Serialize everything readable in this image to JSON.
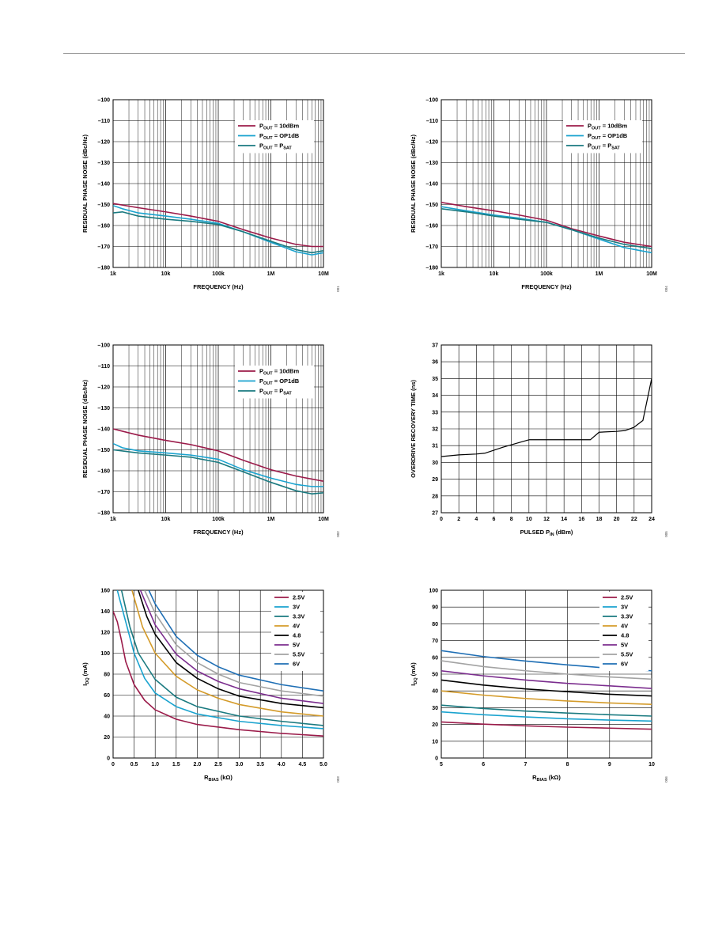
{
  "page": {
    "rule_color": "#9a9a9a"
  },
  "chart_data": [
    {
      "id": "c1",
      "type": "line",
      "xscale": "log",
      "xlim": [
        1000,
        10000000
      ],
      "ylim": [
        -180,
        -100
      ],
      "xticks": [
        1000,
        10000,
        100000,
        1000000,
        10000000
      ],
      "xticklabels": [
        "1k",
        "10k",
        "100k",
        "1M",
        "10M"
      ],
      "yticks": [
        -100,
        -110,
        -120,
        -130,
        -140,
        -150,
        -160,
        -170,
        -180
      ],
      "yticklabels": [
        "–100",
        "–110",
        "–120",
        "–130",
        "–140",
        "–150",
        "–160",
        "–170",
        "–180"
      ],
      "grid": true,
      "ylabel": "RESIDUAL PHASE NOISE (dBc/Hz)",
      "xlabel": "FREQUENCY (Hz)",
      "legend_loc": "top-right",
      "fig": "001",
      "series": [
        {
          "name": "P_OUT = 10dBm",
          "color": "#9b1b4a",
          "x": [
            1000,
            3000,
            10000,
            30000,
            100000,
            300000,
            1000000,
            3000000,
            6000000,
            10000000
          ],
          "y": [
            -149.5,
            -151.5,
            -153.5,
            -155.5,
            -158,
            -162,
            -166,
            -169,
            -170,
            -170
          ]
        },
        {
          "name": "P_OUT = OP1dB",
          "color": "#1aa3cf",
          "x": [
            1000,
            1500,
            3000,
            10000,
            30000,
            100000,
            300000,
            1000000,
            3000000,
            6000000,
            10000000
          ],
          "y": [
            -150.5,
            -152,
            -154,
            -155.5,
            -157,
            -159,
            -163,
            -168,
            -172.5,
            -174,
            -173
          ]
        },
        {
          "name": "P_OUT = P_SAT",
          "color": "#1a7a80",
          "x": [
            1000,
            1500,
            3000,
            10000,
            30000,
            100000,
            300000,
            1000000,
            3000000,
            6000000,
            10000000
          ],
          "y": [
            -154,
            -153.5,
            -155.5,
            -157,
            -158,
            -159.5,
            -163,
            -167.5,
            -171.5,
            -173,
            -172
          ]
        }
      ]
    },
    {
      "id": "c2",
      "type": "line",
      "xscale": "log",
      "xlim": [
        1000,
        10000000
      ],
      "ylim": [
        -180,
        -100
      ],
      "xticks": [
        1000,
        10000,
        100000,
        1000000,
        10000000
      ],
      "xticklabels": [
        "1k",
        "10k",
        "100k",
        "1M",
        "10M"
      ],
      "yticks": [
        -100,
        -110,
        -120,
        -130,
        -140,
        -150,
        -160,
        -170,
        -180
      ],
      "yticklabels": [
        "–100",
        "–110",
        "–120",
        "–130",
        "–140",
        "–150",
        "–160",
        "–170",
        "–180"
      ],
      "grid": true,
      "ylabel": "RESIDUAL PHASE NOISE (dBc/Hz)",
      "xlabel": "FREQUENCY (Hz)",
      "legend_loc": "top-right",
      "fig": "004",
      "series": [
        {
          "name": "P_OUT = 10dBm",
          "color": "#9b1b4a",
          "x": [
            1000,
            3000,
            10000,
            30000,
            100000,
            300000,
            1000000,
            3000000,
            10000000
          ],
          "y": [
            -149,
            -151,
            -153,
            -155,
            -157.5,
            -161.5,
            -165,
            -168,
            -170
          ]
        },
        {
          "name": "P_OUT = OP1dB",
          "color": "#1aa3cf",
          "x": [
            1000,
            3000,
            10000,
            30000,
            100000,
            300000,
            1000000,
            3000000,
            10000000
          ],
          "y": [
            -151,
            -153,
            -155,
            -156.5,
            -158.5,
            -162,
            -166.5,
            -170.5,
            -173
          ]
        },
        {
          "name": "P_OUT = P_SAT",
          "color": "#1a7a80",
          "x": [
            1000,
            3000,
            10000,
            30000,
            100000,
            300000,
            1000000,
            3000000,
            10000000
          ],
          "y": [
            -152,
            -153.5,
            -155.5,
            -157,
            -158.5,
            -162,
            -166,
            -169,
            -171
          ]
        }
      ]
    },
    {
      "id": "c3",
      "type": "line",
      "xscale": "log",
      "xlim": [
        1000,
        10000000
      ],
      "ylim": [
        -180,
        -100
      ],
      "xticks": [
        1000,
        10000,
        100000,
        1000000,
        10000000
      ],
      "xticklabels": [
        "1k",
        "10k",
        "100k",
        "1M",
        "10M"
      ],
      "yticks": [
        -100,
        -110,
        -120,
        -130,
        -140,
        -150,
        -160,
        -170,
        -180
      ],
      "yticklabels": [
        "–100",
        "–110",
        "–120",
        "–130",
        "–140",
        "–150",
        "–160",
        "–170",
        "–180"
      ],
      "grid": true,
      "ylabel": "RESIDUAL PHASE NOISE (dBc/Hz)",
      "xlabel": "FREQUENCY (Hz)",
      "legend_loc": "top-right",
      "fig": "002",
      "series": [
        {
          "name": "P_OUT = 10dBm",
          "color": "#9b1b4a",
          "x": [
            1000,
            3000,
            10000,
            30000,
            100000,
            300000,
            1000000,
            3000000,
            10000000
          ],
          "y": [
            -140,
            -143,
            -145.5,
            -147.5,
            -150.5,
            -155,
            -159.5,
            -162.5,
            -165
          ]
        },
        {
          "name": "P_OUT = OP1dB",
          "color": "#1aa3cf",
          "x": [
            1000,
            1500,
            3000,
            10000,
            30000,
            100000,
            300000,
            1000000,
            3000000,
            6000000,
            10000000
          ],
          "y": [
            -147,
            -149,
            -150.5,
            -151.5,
            -152.5,
            -154.5,
            -159.5,
            -163.5,
            -166.5,
            -167.5,
            -167.5
          ]
        },
        {
          "name": "P_OUT = P_SAT",
          "color": "#1a7a80",
          "x": [
            1000,
            3000,
            10000,
            30000,
            100000,
            300000,
            1000000,
            3000000,
            6000000,
            10000000
          ],
          "y": [
            -150,
            -151.5,
            -152.5,
            -153.5,
            -156,
            -160.5,
            -165.5,
            -169.5,
            -171,
            -170.5
          ]
        }
      ]
    },
    {
      "id": "c4",
      "type": "line",
      "xscale": "linear",
      "xlim": [
        0,
        24
      ],
      "ylim": [
        27,
        37
      ],
      "xticks": [
        0,
        2,
        4,
        6,
        8,
        10,
        12,
        14,
        16,
        18,
        20,
        22,
        24
      ],
      "xticklabels": [
        "0",
        "2",
        "4",
        "6",
        "8",
        "10",
        "12",
        "14",
        "16",
        "18",
        "20",
        "22",
        "24"
      ],
      "yticks": [
        27,
        28,
        29,
        30,
        31,
        32,
        33,
        34,
        35,
        36,
        37
      ],
      "yticklabels": [
        "27",
        "28",
        "29",
        "30",
        "31",
        "32",
        "33",
        "34",
        "35",
        "36",
        "37"
      ],
      "grid": true,
      "ylabel": "OVERDRIVE RECOVERY TIME (ns)",
      "xlabel": "PULSED P_IN (dBm)",
      "fig": "005",
      "series": [
        {
          "color": "#000000",
          "x": [
            0,
            2,
            4,
            5,
            7,
            9,
            10,
            11,
            13,
            15,
            17,
            18,
            20,
            21,
            22,
            23,
            24
          ],
          "y": [
            30.35,
            30.45,
            30.5,
            30.55,
            30.9,
            31.2,
            31.35,
            31.35,
            31.35,
            31.35,
            31.35,
            31.8,
            31.85,
            31.9,
            32.1,
            32.5,
            35
          ]
        }
      ]
    },
    {
      "id": "c5",
      "type": "line",
      "xscale": "linear",
      "xlim": [
        0,
        5
      ],
      "ylim": [
        0,
        160
      ],
      "xticks": [
        0,
        0.5,
        1.0,
        1.5,
        2.0,
        2.5,
        3.0,
        3.5,
        4.0,
        4.5,
        5.0
      ],
      "xticklabels": [
        "0",
        "0.5",
        "1.0",
        "1.5",
        "2.0",
        "2.5",
        "3.0",
        "3.5",
        "4.0",
        "4.5",
        "5.0"
      ],
      "yticks": [
        0,
        20,
        40,
        60,
        80,
        100,
        120,
        140,
        160
      ],
      "yticklabels": [
        "0",
        "20",
        "40",
        "60",
        "80",
        "100",
        "120",
        "140",
        "160"
      ],
      "grid": true,
      "ylabel": "I_DQ (mA)",
      "xlabel": "R_BIAS (kΩ)",
      "legend_loc": "top-right",
      "fig": "003",
      "series": [
        {
          "name": "2.5V",
          "color": "#9b1b4a",
          "x": [
            0,
            0.1,
            0.2,
            0.3,
            0.5,
            0.75,
            1.0,
            1.5,
            2.0,
            3.0,
            4.0,
            5.0
          ],
          "y": [
            140,
            130,
            112,
            92,
            70,
            55,
            46,
            37,
            32,
            27,
            23.5,
            21
          ]
        },
        {
          "name": "3V",
          "color": "#1aa3cf",
          "x": [
            0.1,
            0.3,
            0.5,
            0.75,
            1.0,
            1.5,
            2.0,
            3.0,
            4.0,
            5.0
          ],
          "y": [
            160,
            130,
            100,
            76,
            62,
            49,
            42,
            35,
            31,
            28
          ]
        },
        {
          "name": "3.3V",
          "color": "#1a7a80",
          "x": [
            0.2,
            0.4,
            0.6,
            1.0,
            1.5,
            2.0,
            3.0,
            4.0,
            5.0
          ],
          "y": [
            160,
            125,
            100,
            75,
            58,
            49,
            40,
            35,
            31
          ]
        },
        {
          "name": "4V",
          "color": "#d49b2a",
          "x": [
            0.45,
            0.7,
            1.0,
            1.5,
            2.0,
            2.5,
            3.0,
            4.0,
            5.0
          ],
          "y": [
            160,
            125,
            100,
            78,
            65,
            57,
            51,
            44,
            40
          ]
        },
        {
          "name": "4.8",
          "color": "#000000",
          "x": [
            0.6,
            0.8,
            1.0,
            1.5,
            2.0,
            2.5,
            3.0,
            4.0,
            5.0
          ],
          "y": [
            160,
            135,
            118,
            91,
            76,
            66,
            59,
            52,
            48
          ]
        },
        {
          "name": "5V",
          "color": "#7b2d8e",
          "x": [
            0.65,
            1.0,
            1.5,
            2.0,
            2.5,
            3.0,
            4.0,
            5.0
          ],
          "y": [
            160,
            127,
            99,
            83,
            73,
            66,
            57,
            52
          ]
        },
        {
          "name": "5.5V",
          "color": "#a3a3a3",
          "x": [
            0.75,
            1.0,
            1.5,
            2.0,
            2.5,
            3.0,
            4.0,
            5.0
          ],
          "y": [
            160,
            138,
            108,
            91,
            80,
            72,
            64,
            59
          ]
        },
        {
          "name": "6V",
          "color": "#1f6fb5",
          "x": [
            0.85,
            1.0,
            1.5,
            2.0,
            2.5,
            3.0,
            4.0,
            5.0
          ],
          "y": [
            160,
            147,
            116,
            98,
            87,
            79,
            70,
            64
          ]
        }
      ]
    },
    {
      "id": "c6",
      "type": "line",
      "xscale": "linear",
      "xlim": [
        5,
        10
      ],
      "ylim": [
        0,
        100
      ],
      "xticks": [
        5,
        6,
        7,
        8,
        9,
        10
      ],
      "xticklabels": [
        "5",
        "6",
        "7",
        "8",
        "9",
        "10"
      ],
      "yticks": [
        0,
        10,
        20,
        30,
        40,
        50,
        60,
        70,
        80,
        90,
        100
      ],
      "yticklabels": [
        "0",
        "10",
        "20",
        "30",
        "40",
        "50",
        "60",
        "70",
        "80",
        "90",
        "100"
      ],
      "grid": true,
      "ylabel": "I_DQ (mA)",
      "xlabel": "R_BIAS (kΩ)",
      "legend_loc": "top-right",
      "fig": "006",
      "series": [
        {
          "name": "2.5V",
          "color": "#9b1b4a",
          "x": [
            5,
            6,
            7,
            8,
            9,
            10
          ],
          "y": [
            21.5,
            20.2,
            19.2,
            18.4,
            17.8,
            17.2
          ]
        },
        {
          "name": "3V",
          "color": "#1aa3cf",
          "x": [
            5,
            6,
            7,
            8,
            9,
            10
          ],
          "y": [
            27.5,
            25.8,
            24.5,
            23.4,
            22.6,
            22
          ]
        },
        {
          "name": "3.3V",
          "color": "#1a7a80",
          "x": [
            5,
            6,
            7,
            8,
            9,
            10
          ],
          "y": [
            31.5,
            29.5,
            28,
            26.8,
            25.8,
            25
          ]
        },
        {
          "name": "4V",
          "color": "#d49b2a",
          "x": [
            5,
            6,
            7,
            8,
            9,
            10
          ],
          "y": [
            40,
            37.5,
            35.5,
            34,
            32.8,
            32
          ]
        },
        {
          "name": "4.8",
          "color": "#000000",
          "x": [
            5,
            6,
            7,
            8,
            9,
            10
          ],
          "y": [
            46.5,
            43.5,
            41.2,
            39.5,
            38,
            37
          ]
        },
        {
          "name": "5V",
          "color": "#7b2d8e",
          "x": [
            5,
            6,
            7,
            8,
            9,
            10
          ],
          "y": [
            52,
            49,
            46.5,
            44.5,
            43,
            41.5
          ]
        },
        {
          "name": "5.5V",
          "color": "#a3a3a3",
          "x": [
            5,
            6,
            7,
            8,
            9,
            10
          ],
          "y": [
            58,
            54.5,
            52,
            50,
            48.3,
            47
          ]
        },
        {
          "name": "6V",
          "color": "#1f6fb5",
          "x": [
            5,
            6,
            7,
            8,
            9,
            10
          ],
          "y": [
            64,
            60.5,
            57.8,
            55.5,
            53.5,
            52
          ]
        }
      ]
    }
  ]
}
